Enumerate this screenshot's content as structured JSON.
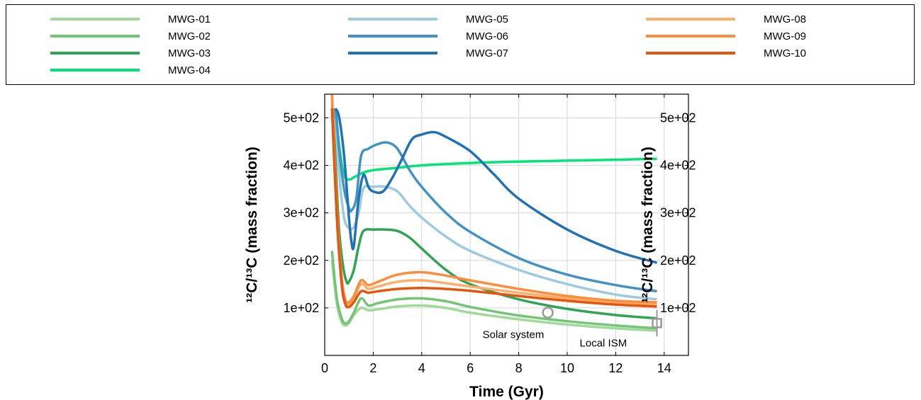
{
  "chart_data": {
    "type": "line",
    "xlabel": "Time (Gyr)",
    "ylabel_left": "¹²C/¹³C (mass fraction)",
    "ylabel_right": "¹²C/¹³C (mass fraction)",
    "xlim": [
      0,
      15
    ],
    "ylim": [
      0,
      550
    ],
    "x_ticks": [
      0,
      2,
      4,
      6,
      8,
      10,
      12,
      14
    ],
    "y_ticks": [
      100,
      200,
      300,
      400,
      500
    ],
    "y_tick_labels": [
      "1e+02",
      "2e+02",
      "3e+02",
      "4e+02",
      "5e+02"
    ],
    "grid": true,
    "legend_position": "top",
    "series": [
      {
        "name": "MWG-01",
        "color": "#a1d99b",
        "x": [
          0.3,
          0.5,
          0.7,
          0.85,
          1.0,
          1.2,
          1.5,
          1.8,
          2.2,
          3.0,
          4.0,
          5.0,
          6.0,
          8.0,
          10.0,
          12.0,
          13.7
        ],
        "y": [
          200,
          110,
          70,
          63,
          68,
          85,
          100,
          95,
          97,
          103,
          105,
          100,
          90,
          76,
          65,
          57,
          52
        ]
      },
      {
        "name": "MWG-02",
        "color": "#74c476",
        "x": [
          0.3,
          0.5,
          0.7,
          0.85,
          1.0,
          1.2,
          1.5,
          1.8,
          2.2,
          3.0,
          4.0,
          5.0,
          6.0,
          8.0,
          10.0,
          12.0,
          13.7
        ],
        "y": [
          220,
          120,
          78,
          67,
          72,
          90,
          120,
          105,
          110,
          118,
          120,
          114,
          102,
          84,
          72,
          63,
          57
        ]
      },
      {
        "name": "MWG-03",
        "color": "#31a354",
        "x": [
          0.35,
          0.5,
          0.6,
          0.75,
          0.9,
          1.0,
          1.2,
          1.4,
          1.6,
          2.0,
          2.5,
          3.0,
          3.5,
          4.0,
          5.0,
          6.0,
          8.0,
          10.0,
          12.0,
          13.7
        ],
        "y": [
          520,
          350,
          260,
          190,
          155,
          155,
          180,
          230,
          262,
          265,
          265,
          262,
          248,
          225,
          180,
          150,
          118,
          98,
          85,
          78
        ]
      },
      {
        "name": "MWG-04",
        "color": "#00e676",
        "x": [
          0.45,
          0.6,
          0.8,
          1.0,
          1.2,
          1.4,
          1.6,
          2.0,
          3.0,
          4.0,
          6.0,
          8.0,
          10.0,
          12.0,
          13.7
        ],
        "y": [
          520,
          440,
          380,
          370,
          375,
          380,
          385,
          390,
          395,
          400,
          405,
          408,
          410,
          412,
          414
        ]
      },
      {
        "name": "MWG-05",
        "color": "#9ecae1",
        "x": [
          0.45,
          0.6,
          0.8,
          1.0,
          1.2,
          1.4,
          1.6,
          2.0,
          2.5,
          3.0,
          3.5,
          4.0,
          5.0,
          6.0,
          8.0,
          10.0,
          12.0,
          13.7
        ],
        "y": [
          500,
          380,
          290,
          268,
          270,
          300,
          352,
          355,
          355,
          345,
          315,
          290,
          250,
          220,
          180,
          150,
          128,
          118
        ]
      },
      {
        "name": "MWG-06",
        "color": "#4292c6",
        "x": [
          0.45,
          0.6,
          0.8,
          1.0,
          1.1,
          1.3,
          1.5,
          1.8,
          2.2,
          2.6,
          3.0,
          3.5,
          4.0,
          5.0,
          6.0,
          8.0,
          10.0,
          12.0,
          13.7
        ],
        "y": [
          520,
          430,
          350,
          310,
          305,
          330,
          420,
          435,
          445,
          448,
          435,
          390,
          355,
          300,
          260,
          205,
          170,
          148,
          135
        ]
      },
      {
        "name": "MWG-07",
        "color": "#2171b5",
        "x": [
          0.45,
          0.6,
          0.8,
          1.0,
          1.1,
          1.2,
          1.4,
          1.6,
          1.8,
          2.0,
          2.4,
          2.8,
          3.2,
          3.6,
          4.0,
          4.5,
          5.0,
          6.0,
          7.0,
          8.0,
          10.0,
          12.0,
          13.7
        ],
        "y": [
          520,
          500,
          420,
          290,
          240,
          230,
          330,
          380,
          355,
          345,
          345,
          375,
          415,
          455,
          465,
          470,
          460,
          430,
          380,
          330,
          265,
          220,
          195
        ]
      },
      {
        "name": "MWG-08",
        "color": "#fdae6b",
        "x": [
          0.3,
          0.5,
          0.7,
          0.85,
          1.0,
          1.2,
          1.5,
          1.8,
          2.2,
          3.0,
          4.0,
          5.0,
          6.0,
          8.0,
          10.0,
          12.0,
          13.7
        ],
        "y": [
          550,
          300,
          160,
          112,
          108,
          120,
          150,
          140,
          145,
          155,
          158,
          152,
          145,
          132,
          120,
          112,
          108
        ]
      },
      {
        "name": "MWG-09",
        "color": "#fd8d3c",
        "x": [
          0.3,
          0.5,
          0.7,
          0.85,
          1.0,
          1.2,
          1.5,
          1.8,
          2.2,
          3.0,
          4.0,
          5.0,
          6.0,
          8.0,
          10.0,
          12.0,
          13.7
        ],
        "y": [
          550,
          310,
          165,
          118,
          112,
          125,
          158,
          148,
          155,
          170,
          175,
          168,
          158,
          140,
          125,
          115,
          112
        ]
      },
      {
        "name": "MWG-10",
        "color": "#e6550d",
        "x": [
          0.3,
          0.5,
          0.7,
          0.85,
          1.0,
          1.2,
          1.5,
          1.8,
          2.2,
          3.0,
          4.0,
          5.0,
          6.0,
          8.0,
          10.0,
          12.0,
          13.7
        ],
        "y": [
          520,
          290,
          150,
          108,
          102,
          112,
          135,
          132,
          135,
          140,
          142,
          140,
          136,
          125,
          115,
          107,
          103
        ]
      }
    ],
    "annotations": [
      {
        "text": "Solar system",
        "x": 9.2,
        "y": 90,
        "marker": "circle",
        "color": "#999999"
      },
      {
        "text": "Local ISM",
        "x": 13.7,
        "y": 68,
        "yerr": 28,
        "marker": "square",
        "color": "#999999"
      }
    ]
  }
}
